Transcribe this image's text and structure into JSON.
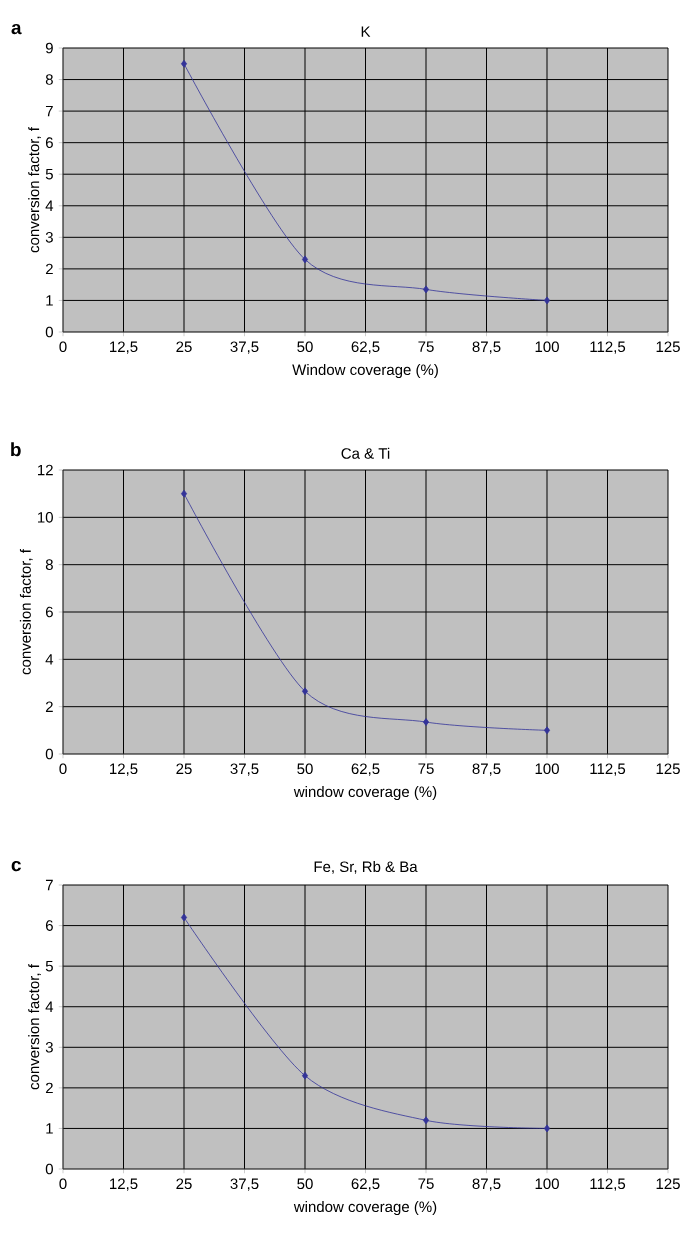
{
  "chart_data": [
    {
      "type": "line",
      "title": "K",
      "xlabel": "Window coverage (%)",
      "ylabel": "conversion factor, f",
      "annotations": [
        "a"
      ],
      "x": [
        25,
        50,
        75,
        100
      ],
      "series": [
        {
          "color": "#333399",
          "values": [
            8.5,
            2.3,
            1.35,
            1.0
          ]
        }
      ],
      "xlim": [
        0,
        125
      ],
      "ylim": [
        0,
        9
      ],
      "xticks": [
        0,
        {
          "value": 12.5,
          "label": "12,5"
        },
        25,
        {
          "value": 37.5,
          "label": "37,5"
        },
        50,
        {
          "value": 62.5,
          "label": "62,5"
        },
        75,
        {
          "value": 87.5,
          "label": "87,5"
        },
        100,
        {
          "value": 112.5,
          "label": "112,5"
        },
        125
      ],
      "yticks": [
        0,
        1,
        2,
        3,
        4,
        5,
        6,
        7,
        8,
        9
      ],
      "grid": true,
      "marker": "diamond",
      "line_style": "solid"
    },
    {
      "type": "line",
      "title": "Ca & Ti",
      "xlabel": "window coverage (%)",
      "ylabel": "conversion factor, f",
      "annotations": [
        "b"
      ],
      "x": [
        25,
        50,
        75,
        100
      ],
      "series": [
        {
          "color": "#333399",
          "values": [
            11,
            2.65,
            1.35,
            1.0
          ]
        }
      ],
      "xlim": [
        0,
        125
      ],
      "ylim": [
        0,
        12
      ],
      "xticks": [
        0,
        {
          "value": 12.5,
          "label": "12,5"
        },
        25,
        {
          "value": 37.5,
          "label": "37,5"
        },
        50,
        {
          "value": 62.5,
          "label": "62,5"
        },
        75,
        {
          "value": 87.5,
          "label": "87,5"
        },
        100,
        {
          "value": 112.5,
          "label": "112,5"
        },
        125
      ],
      "yticks": [
        0,
        2,
        4,
        6,
        8,
        10,
        12
      ],
      "grid": true,
      "marker": "diamond",
      "line_style": "solid"
    },
    {
      "type": "line",
      "title": "Fe, Sr, Rb & Ba",
      "xlabel": "window coverage (%)",
      "ylabel": "conversion factor, f",
      "annotations": [
        "c"
      ],
      "x": [
        25,
        50,
        75,
        100
      ],
      "series": [
        {
          "color": "#333399",
          "values": [
            6.2,
            2.3,
            1.2,
            1.0
          ]
        }
      ],
      "xlim": [
        0,
        125
      ],
      "ylim": [
        0,
        7
      ],
      "xticks": [
        0,
        {
          "value": 12.5,
          "label": "12,5"
        },
        25,
        {
          "value": 37.5,
          "label": "37,5"
        },
        50,
        {
          "value": 62.5,
          "label": "62,5"
        },
        75,
        {
          "value": 87.5,
          "label": "87,5"
        },
        100,
        {
          "value": 112.5,
          "label": "112,5"
        },
        125
      ],
      "yticks": [
        0,
        1,
        2,
        3,
        4,
        5,
        6,
        7
      ],
      "grid": true,
      "marker": "diamond",
      "line_style": "solid"
    }
  ]
}
